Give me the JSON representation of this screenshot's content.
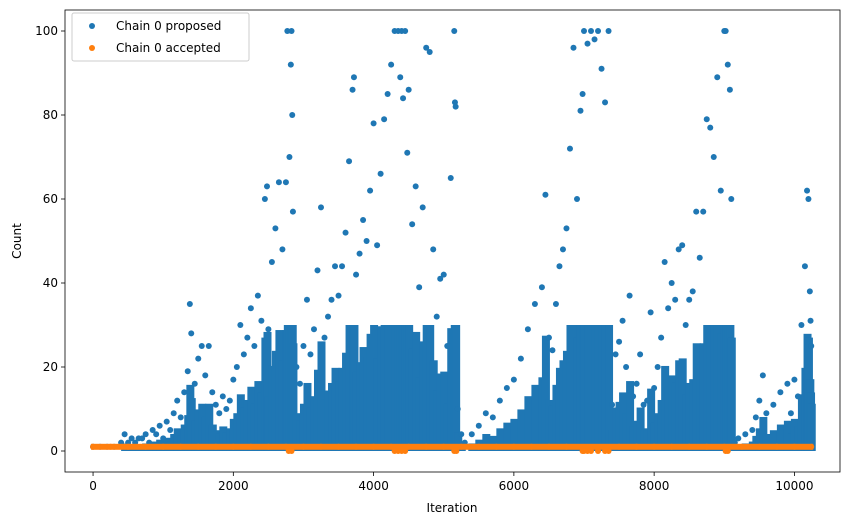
{
  "chart_data": {
    "type": "scatter",
    "title": "",
    "xlabel": "Iteration",
    "ylabel": "Count",
    "xlim": [
      -400,
      10650
    ],
    "ylim": [
      -5,
      105
    ],
    "xticks": [
      0,
      2000,
      4000,
      6000,
      8000,
      10000
    ],
    "yticks": [
      0,
      20,
      40,
      60,
      80,
      100
    ],
    "grid": false,
    "legend_position": "top-left",
    "series": [
      {
        "name": "Chain 0 proposed",
        "color": "#1f77b4",
        "note": "approximate sample of the dense point cloud",
        "points": [
          [
            0,
            1
          ],
          [
            100,
            1
          ],
          [
            200,
            1
          ],
          [
            300,
            1
          ],
          [
            400,
            2
          ],
          [
            450,
            4
          ],
          [
            500,
            2
          ],
          [
            550,
            3
          ],
          [
            600,
            2
          ],
          [
            650,
            3
          ],
          [
            700,
            3
          ],
          [
            750,
            4
          ],
          [
            800,
            2
          ],
          [
            850,
            5
          ],
          [
            900,
            4
          ],
          [
            950,
            6
          ],
          [
            1000,
            3
          ],
          [
            1050,
            7
          ],
          [
            1100,
            5
          ],
          [
            1150,
            9
          ],
          [
            1200,
            12
          ],
          [
            1250,
            8
          ],
          [
            1300,
            14
          ],
          [
            1350,
            19
          ],
          [
            1380,
            35
          ],
          [
            1400,
            28
          ],
          [
            1450,
            16
          ],
          [
            1500,
            22
          ],
          [
            1550,
            25
          ],
          [
            1600,
            18
          ],
          [
            1650,
            25
          ],
          [
            1700,
            14
          ],
          [
            1750,
            11
          ],
          [
            1800,
            9
          ],
          [
            1850,
            13
          ],
          [
            1900,
            10
          ],
          [
            1950,
            12
          ],
          [
            2000,
            17
          ],
          [
            2050,
            20
          ],
          [
            2100,
            30
          ],
          [
            2150,
            23
          ],
          [
            2200,
            27
          ],
          [
            2250,
            34
          ],
          [
            2300,
            25
          ],
          [
            2350,
            37
          ],
          [
            2400,
            31
          ],
          [
            2450,
            60
          ],
          [
            2480,
            63
          ],
          [
            2500,
            29
          ],
          [
            2550,
            45
          ],
          [
            2600,
            53
          ],
          [
            2650,
            64
          ],
          [
            2700,
            48
          ],
          [
            2750,
            64
          ],
          [
            2770,
            100
          ],
          [
            2800,
            70
          ],
          [
            2820,
            92
          ],
          [
            2830,
            100
          ],
          [
            2840,
            80
          ],
          [
            2850,
            57
          ],
          [
            2900,
            20
          ],
          [
            2950,
            16
          ],
          [
            3000,
            25
          ],
          [
            3050,
            36
          ],
          [
            3100,
            23
          ],
          [
            3150,
            29
          ],
          [
            3200,
            43
          ],
          [
            3250,
            58
          ],
          [
            3300,
            27
          ],
          [
            3350,
            32
          ],
          [
            3400,
            36
          ],
          [
            3450,
            44
          ],
          [
            3500,
            37
          ],
          [
            3550,
            44
          ],
          [
            3600,
            52
          ],
          [
            3650,
            69
          ],
          [
            3700,
            86
          ],
          [
            3720,
            89
          ],
          [
            3750,
            42
          ],
          [
            3800,
            47
          ],
          [
            3850,
            55
          ],
          [
            3900,
            50
          ],
          [
            3950,
            62
          ],
          [
            4000,
            78
          ],
          [
            4050,
            49
          ],
          [
            4100,
            66
          ],
          [
            4150,
            79
          ],
          [
            4200,
            85
          ],
          [
            4250,
            92
          ],
          [
            4300,
            100
          ],
          [
            4350,
            100
          ],
          [
            4380,
            89
          ],
          [
            4400,
            100
          ],
          [
            4420,
            84
          ],
          [
            4450,
            100
          ],
          [
            4480,
            71
          ],
          [
            4500,
            86
          ],
          [
            4550,
            54
          ],
          [
            4600,
            63
          ],
          [
            4650,
            39
          ],
          [
            4700,
            58
          ],
          [
            4750,
            96
          ],
          [
            4800,
            95
          ],
          [
            4850,
            48
          ],
          [
            4900,
            32
          ],
          [
            4950,
            41
          ],
          [
            5000,
            42
          ],
          [
            5050,
            25
          ],
          [
            5100,
            65
          ],
          [
            5150,
            100
          ],
          [
            5160,
            83
          ],
          [
            5170,
            82
          ],
          [
            5200,
            10
          ],
          [
            5250,
            4
          ],
          [
            5300,
            2
          ],
          [
            5400,
            4
          ],
          [
            5500,
            6
          ],
          [
            5600,
            9
          ],
          [
            5700,
            8
          ],
          [
            5800,
            12
          ],
          [
            5900,
            15
          ],
          [
            6000,
            17
          ],
          [
            6100,
            22
          ],
          [
            6200,
            29
          ],
          [
            6300,
            35
          ],
          [
            6400,
            39
          ],
          [
            6450,
            61
          ],
          [
            6500,
            27
          ],
          [
            6550,
            24
          ],
          [
            6600,
            35
          ],
          [
            6650,
            44
          ],
          [
            6700,
            48
          ],
          [
            6750,
            53
          ],
          [
            6800,
            72
          ],
          [
            6850,
            96
          ],
          [
            6900,
            60
          ],
          [
            6950,
            81
          ],
          [
            6980,
            85
          ],
          [
            7000,
            100
          ],
          [
            7050,
            97
          ],
          [
            7100,
            100
          ],
          [
            7150,
            98
          ],
          [
            7200,
            100
          ],
          [
            7250,
            91
          ],
          [
            7300,
            83
          ],
          [
            7350,
            100
          ],
          [
            7400,
            11
          ],
          [
            7450,
            23
          ],
          [
            7500,
            26
          ],
          [
            7550,
            31
          ],
          [
            7600,
            20
          ],
          [
            7650,
            37
          ],
          [
            7700,
            13
          ],
          [
            7750,
            16
          ],
          [
            7800,
            23
          ],
          [
            7850,
            11
          ],
          [
            7900,
            12
          ],
          [
            7950,
            33
          ],
          [
            8000,
            15
          ],
          [
            8050,
            20
          ],
          [
            8100,
            27
          ],
          [
            8150,
            45
          ],
          [
            8200,
            34
          ],
          [
            8250,
            40
          ],
          [
            8300,
            36
          ],
          [
            8350,
            48
          ],
          [
            8400,
            49
          ],
          [
            8450,
            30
          ],
          [
            8500,
            36
          ],
          [
            8550,
            38
          ],
          [
            8600,
            57
          ],
          [
            8650,
            46
          ],
          [
            8700,
            57
          ],
          [
            8750,
            79
          ],
          [
            8800,
            77
          ],
          [
            8850,
            70
          ],
          [
            8900,
            89
          ],
          [
            8950,
            62
          ],
          [
            9000,
            100
          ],
          [
            9020,
            100
          ],
          [
            9050,
            92
          ],
          [
            9080,
            86
          ],
          [
            9100,
            60
          ],
          [
            9150,
            2
          ],
          [
            9200,
            3
          ],
          [
            9300,
            4
          ],
          [
            9400,
            5
          ],
          [
            9450,
            8
          ],
          [
            9500,
            12
          ],
          [
            9550,
            18
          ],
          [
            9600,
            9
          ],
          [
            9700,
            11
          ],
          [
            9800,
            14
          ],
          [
            9900,
            16
          ],
          [
            9950,
            9
          ],
          [
            10000,
            17
          ],
          [
            10050,
            13
          ],
          [
            10100,
            30
          ],
          [
            10150,
            44
          ],
          [
            10180,
            62
          ],
          [
            10200,
            60
          ],
          [
            10220,
            38
          ],
          [
            10230,
            31
          ],
          [
            10240,
            25
          ]
        ]
      },
      {
        "name": "Chain 0 accepted",
        "color": "#ff7f0e",
        "note": "nearly all points at 1, a few at 0",
        "points": [
          [
            0,
            1
          ],
          [
            250,
            1
          ],
          [
            500,
            1
          ],
          [
            750,
            1
          ],
          [
            1000,
            1
          ],
          [
            1250,
            1
          ],
          [
            1500,
            1
          ],
          [
            1750,
            1
          ],
          [
            2000,
            1
          ],
          [
            2250,
            1
          ],
          [
            2500,
            1
          ],
          [
            2750,
            1
          ],
          [
            2790,
            0
          ],
          [
            2830,
            0
          ],
          [
            3000,
            1
          ],
          [
            3250,
            1
          ],
          [
            3500,
            1
          ],
          [
            3750,
            1
          ],
          [
            4000,
            1
          ],
          [
            4250,
            1
          ],
          [
            4300,
            0
          ],
          [
            4350,
            0
          ],
          [
            4400,
            0
          ],
          [
            4450,
            0
          ],
          [
            4500,
            1
          ],
          [
            4750,
            1
          ],
          [
            5000,
            1
          ],
          [
            5150,
            0
          ],
          [
            5180,
            0
          ],
          [
            5250,
            1
          ],
          [
            5500,
            1
          ],
          [
            5750,
            1
          ],
          [
            6000,
            1
          ],
          [
            6250,
            1
          ],
          [
            6500,
            1
          ],
          [
            6750,
            1
          ],
          [
            6980,
            0
          ],
          [
            7000,
            0
          ],
          [
            7050,
            0
          ],
          [
            7100,
            0
          ],
          [
            7200,
            0
          ],
          [
            7300,
            0
          ],
          [
            7350,
            0
          ],
          [
            7500,
            1
          ],
          [
            7750,
            1
          ],
          [
            8000,
            1
          ],
          [
            8250,
            1
          ],
          [
            8500,
            1
          ],
          [
            8750,
            1
          ],
          [
            9000,
            1
          ],
          [
            9020,
            0
          ],
          [
            9050,
            0
          ],
          [
            9250,
            1
          ],
          [
            9500,
            1
          ],
          [
            9750,
            1
          ],
          [
            10000,
            1
          ],
          [
            10240,
            1
          ]
        ]
      }
    ]
  }
}
